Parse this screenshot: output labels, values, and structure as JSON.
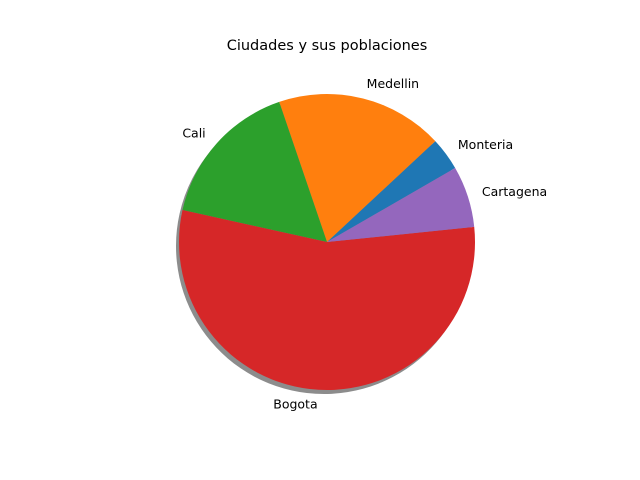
{
  "chart_data": {
    "type": "pie",
    "title": "Ciudades y sus poblaciones",
    "start_angle_deg": 30,
    "direction": "counterclockwise",
    "shadow": true,
    "slices": [
      {
        "label": "Monteria",
        "value": 3.6,
        "color": "#1f77b4"
      },
      {
        "label": "Medellin",
        "value": 18.3,
        "color": "#ff7f0e"
      },
      {
        "label": "Cali",
        "value": 16.3,
        "color": "#2ca02c"
      },
      {
        "label": "Bogota",
        "value": 55.1,
        "color": "#d62728"
      },
      {
        "label": "Cartagena",
        "value": 6.7,
        "color": "#9467bd"
      }
    ]
  }
}
